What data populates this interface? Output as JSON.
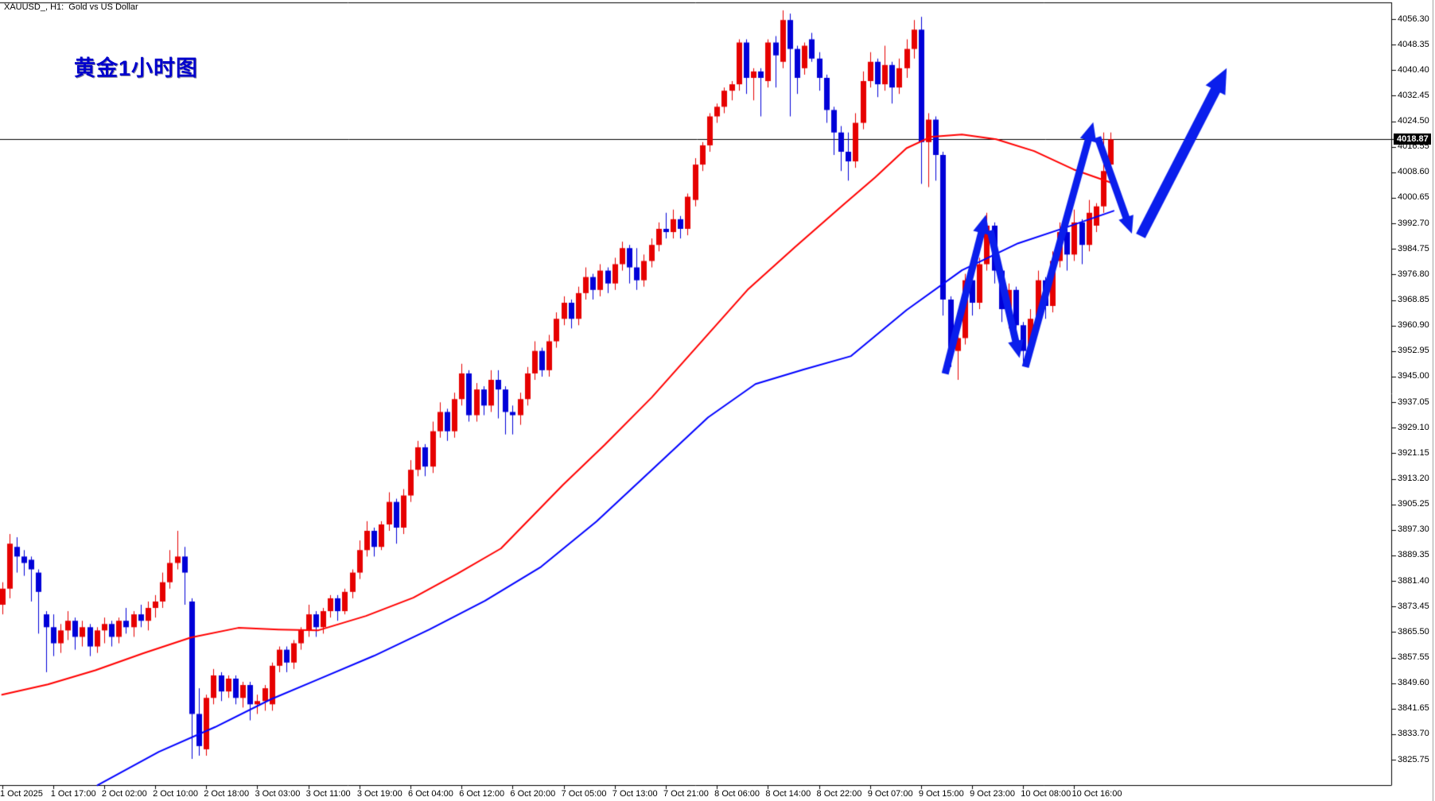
{
  "header": {
    "symbol_line": "XAUUSD_, H1:  Gold vs US Dollar",
    "title": "黄金1小时图"
  },
  "quote": {
    "bid": "4018.87"
  },
  "colors": {
    "background": "#ffffff",
    "border": "#000000",
    "candle_up": "#e60000",
    "candle_down": "#0000d8",
    "ma_fast": "#ff0000",
    "ma_slow": "#0000ff",
    "arrow": "#0a1eec",
    "bid_line": "#000000",
    "outer_frame": "#9a9a9a"
  },
  "chart_data": {
    "type": "candlestick",
    "title": "XAUUSD H1 Gold vs US Dollar",
    "grid": false,
    "legend_position": "none",
    "y_axis": {
      "min": 3825.75,
      "max": 4056.3,
      "step": 7.95,
      "ticks": [
        4056.3,
        4048.35,
        4040.4,
        4032.45,
        4024.5,
        4016.55,
        4008.6,
        4000.65,
        3992.7,
        3984.75,
        3976.8,
        3968.85,
        3960.9,
        3952.95,
        3945.0,
        3937.05,
        3929.1,
        3921.15,
        3913.2,
        3905.25,
        3897.3,
        3889.35,
        3881.4,
        3873.45,
        3865.5,
        3857.55,
        3849.6,
        3841.65,
        3833.7,
        3825.75
      ]
    },
    "x_axis": {
      "bars_per_tick": 7,
      "ticks": [
        "1 Oct 2025",
        "1 Oct 17:00",
        "2 Oct 02:00",
        "2 Oct 10:00",
        "2 Oct 18:00",
        "3 Oct 03:00",
        "3 Oct 11:00",
        "3 Oct 19:00",
        "6 Oct 04:00",
        "6 Oct 12:00",
        "6 Oct 20:00",
        "7 Oct 05:00",
        "7 Oct 13:00",
        "7 Oct 21:00",
        "8 Oct 06:00",
        "8 Oct 14:00",
        "8 Oct 22:00",
        "9 Oct 07:00",
        "9 Oct 15:00",
        "9 Oct 23:00",
        "10 Oct 08:00",
        "10 Oct 16:00"
      ]
    },
    "bid": 4018.87,
    "candles": [
      [
        3874,
        3881,
        3871,
        3879
      ],
      [
        3879,
        3896,
        3876,
        3893
      ],
      [
        3892,
        3895,
        3884,
        3889
      ],
      [
        3889,
        3891,
        3883,
        3887
      ],
      [
        3888,
        3889,
        3875,
        3885
      ],
      [
        3884,
        3885,
        3865,
        3878
      ],
      [
        3871,
        3872,
        3853,
        3867
      ],
      [
        3867,
        3871,
        3858,
        3862
      ],
      [
        3862,
        3868,
        3859,
        3866
      ],
      [
        3866,
        3872,
        3863,
        3869
      ],
      [
        3869,
        3870,
        3860,
        3864
      ],
      [
        3864,
        3869,
        3861,
        3867
      ],
      [
        3867,
        3868,
        3858,
        3861
      ],
      [
        3861,
        3867,
        3859,
        3866
      ],
      [
        3866,
        3870,
        3862,
        3868
      ],
      [
        3868,
        3869,
        3861,
        3864
      ],
      [
        3864,
        3870,
        3862,
        3869
      ],
      [
        3869,
        3873,
        3865,
        3867
      ],
      [
        3867,
        3872,
        3864,
        3871
      ],
      [
        3871,
        3874,
        3867,
        3869
      ],
      [
        3869,
        3875,
        3866,
        3873
      ],
      [
        3873,
        3877,
        3870,
        3875
      ],
      [
        3875,
        3884,
        3873,
        3881
      ],
      [
        3881,
        3891,
        3879,
        3887
      ],
      [
        3887,
        3897,
        3885,
        3889
      ],
      [
        3889,
        3892,
        3874,
        3884
      ],
      [
        3875,
        3876,
        3826,
        3840
      ],
      [
        3840,
        3848,
        3827,
        3830
      ],
      [
        3829,
        3846,
        3827,
        3845
      ],
      [
        3845,
        3854,
        3843,
        3852
      ],
      [
        3852,
        3853,
        3844,
        3847
      ],
      [
        3847,
        3852,
        3845,
        3851
      ],
      [
        3851,
        3852,
        3843,
        3845
      ],
      [
        3845,
        3850,
        3842,
        3849
      ],
      [
        3849,
        3850,
        3838,
        3843
      ],
      [
        3843,
        3846,
        3840,
        3844
      ],
      [
        3844,
        3849,
        3841,
        3848
      ],
      [
        3843,
        3856,
        3841,
        3855
      ],
      [
        3855,
        3861,
        3853,
        3860
      ],
      [
        3860,
        3861,
        3853,
        3856
      ],
      [
        3856,
        3863,
        3854,
        3862
      ],
      [
        3862,
        3867,
        3860,
        3866
      ],
      [
        3866,
        3874,
        3864,
        3871
      ],
      [
        3871,
        3872,
        3864,
        3867
      ],
      [
        3867,
        3873,
        3865,
        3872
      ],
      [
        3872,
        3877,
        3870,
        3876
      ],
      [
        3876,
        3877,
        3869,
        3872
      ],
      [
        3872,
        3879,
        3871,
        3878
      ],
      [
        3878,
        3885,
        3876,
        3884
      ],
      [
        3884,
        3894,
        3882,
        3891
      ],
      [
        3891,
        3900,
        3889,
        3897
      ],
      [
        3897,
        3898,
        3889,
        3892
      ],
      [
        3892,
        3900,
        3891,
        3899
      ],
      [
        3899,
        3909,
        3897,
        3906
      ],
      [
        3906,
        3907,
        3893,
        3898
      ],
      [
        3898,
        3910,
        3896,
        3908
      ],
      [
        3908,
        3919,
        3906,
        3916
      ],
      [
        3916,
        3925,
        3914,
        3923
      ],
      [
        3923,
        3924,
        3914,
        3917
      ],
      [
        3917,
        3931,
        3915,
        3928
      ],
      [
        3928,
        3937,
        3926,
        3934
      ],
      [
        3934,
        3935,
        3925,
        3928
      ],
      [
        3928,
        3940,
        3926,
        3938
      ],
      [
        3938,
        3949,
        3936,
        3946
      ],
      [
        3946,
        3947,
        3931,
        3933
      ],
      [
        3933,
        3943,
        3931,
        3941
      ],
      [
        3941,
        3942,
        3933,
        3936
      ],
      [
        3936,
        3947,
        3934,
        3944
      ],
      [
        3944,
        3947,
        3932,
        3941
      ],
      [
        3941,
        3942,
        3927,
        3934
      ],
      [
        3934,
        3936,
        3927,
        3933
      ],
      [
        3933,
        3940,
        3930,
        3938
      ],
      [
        3938,
        3948,
        3936,
        3946
      ],
      [
        3946,
        3956,
        3944,
        3953
      ],
      [
        3953,
        3954,
        3945,
        3947
      ],
      [
        3947,
        3958,
        3945,
        3956
      ],
      [
        3956,
        3965,
        3954,
        3963
      ],
      [
        3963,
        3970,
        3961,
        3968
      ],
      [
        3968,
        3969,
        3960,
        3963
      ],
      [
        3963,
        3973,
        3961,
        3971
      ],
      [
        3971,
        3979,
        3969,
        3976
      ],
      [
        3976,
        3977,
        3969,
        3972
      ],
      [
        3972,
        3980,
        3970,
        3978
      ],
      [
        3978,
        3979,
        3971,
        3974
      ],
      [
        3974,
        3982,
        3972,
        3980
      ],
      [
        3980,
        3987,
        3978,
        3985
      ],
      [
        3985,
        3986,
        3974,
        3979
      ],
      [
        3979,
        3985,
        3972,
        3975
      ],
      [
        3975,
        3983,
        3973,
        3981
      ],
      [
        3981,
        3988,
        3979,
        3986
      ],
      [
        3986,
        3993,
        3984,
        3991
      ],
      [
        3991,
        3996,
        3988,
        3990
      ],
      [
        3990,
        3997,
        3988,
        3994
      ],
      [
        3994,
        3995,
        3988,
        3991
      ],
      [
        3991,
        4002,
        3989,
        4001
      ],
      [
        4000,
        4013,
        3998,
        4011
      ],
      [
        4011,
        4018,
        4009,
        4017
      ],
      [
        4017,
        4027,
        4015,
        4026
      ],
      [
        4026,
        4030,
        4024,
        4029
      ],
      [
        4029,
        4035,
        4027,
        4034
      ],
      [
        4034,
        4037,
        4031,
        4036
      ],
      [
        4036,
        4050,
        4034,
        4049
      ],
      [
        4049,
        4050,
        4033,
        4038
      ],
      [
        4038,
        4041,
        4031,
        4040
      ],
      [
        4040,
        4041,
        4026,
        4038
      ],
      [
        4037,
        4050,
        4035,
        4049
      ],
      [
        4049,
        4051,
        4035,
        4045
      ],
      [
        4043,
        4059,
        4041,
        4056
      ],
      [
        4056,
        4058,
        4026,
        4047
      ],
      [
        4047,
        4048,
        4033,
        4038
      ],
      [
        4041,
        4049,
        4039,
        4048
      ],
      [
        4050,
        4052,
        4043,
        4044
      ],
      [
        4044,
        4046,
        4034,
        4038
      ],
      [
        4038,
        4039,
        4024,
        4028
      ],
      [
        4028,
        4029,
        4014,
        4021
      ],
      [
        4021,
        4023,
        4009,
        4015
      ],
      [
        4015,
        4021,
        4006,
        4012
      ],
      [
        4012,
        4027,
        4010,
        4024
      ],
      [
        4024,
        4040,
        4022,
        4037
      ],
      [
        4037,
        4046,
        4035,
        4043
      ],
      [
        4043,
        4044,
        4032,
        4036
      ],
      [
        4036,
        4048,
        4034,
        4042
      ],
      [
        4042,
        4043,
        4030,
        4035
      ],
      [
        4035,
        4044,
        4033,
        4041
      ],
      [
        4041,
        4050,
        4038,
        4047
      ],
      [
        4047,
        4056,
        4044,
        4053
      ],
      [
        4053,
        4057,
        4005,
        4018
      ],
      [
        4018,
        4027,
        4004,
        4025
      ],
      [
        4025,
        4026,
        4006,
        4014
      ],
      [
        4014,
        4015,
        3964,
        3969
      ],
      [
        3969,
        3970,
        3948,
        3953
      ],
      [
        3953,
        3959,
        3944,
        3957
      ],
      [
        3957,
        3977,
        3955,
        3975
      ],
      [
        3975,
        3976,
        3964,
        3968
      ],
      [
        3968,
        3982,
        3966,
        3980
      ],
      [
        3980,
        3996,
        3978,
        3992
      ],
      [
        3992,
        3993,
        3974,
        3978
      ],
      [
        3978,
        3979,
        3962,
        3966
      ],
      [
        3966,
        3974,
        3960,
        3972
      ],
      [
        3972,
        3973,
        3955,
        3961
      ],
      [
        3961,
        3962,
        3949,
        3953
      ],
      [
        3953,
        3966,
        3951,
        3963
      ],
      [
        3963,
        3978,
        3961,
        3975
      ],
      [
        3975,
        3976,
        3963,
        3967
      ],
      [
        3967,
        3984,
        3965,
        3981
      ],
      [
        3981,
        3993,
        3979,
        3990
      ],
      [
        3990,
        3991,
        3978,
        3983
      ],
      [
        3983,
        3997,
        3981,
        3993
      ],
      [
        3993,
        3994,
        3980,
        3986
      ],
      [
        3986,
        4000,
        3984,
        3996
      ],
      [
        3992,
        3999,
        3990,
        3998
      ],
      [
        3998,
        4021,
        3996,
        4009
      ],
      [
        4011,
        4021,
        4008,
        4018.87
      ]
    ],
    "ma_fast_points": [
      [
        0,
        3846
      ],
      [
        6.3,
        3849.2
      ],
      [
        12.8,
        3853.6
      ],
      [
        19.4,
        3858.9
      ],
      [
        25.9,
        3863.8
      ],
      [
        32.4,
        3866.8
      ],
      [
        37.9,
        3866.3
      ],
      [
        43.3,
        3866
      ],
      [
        49.9,
        3870.5
      ],
      [
        56.4,
        3876.2
      ],
      [
        62.4,
        3883.6
      ],
      [
        68.4,
        3891.5
      ],
      [
        76.9,
        3911.3
      ],
      [
        82.6,
        3923.7
      ],
      [
        89.1,
        3938.6
      ],
      [
        95.7,
        3955.4
      ],
      [
        102.2,
        3972
      ],
      [
        108.8,
        3985.5
      ],
      [
        115.3,
        3998.4
      ],
      [
        119.7,
        4007
      ],
      [
        124,
        4016.1
      ],
      [
        127.3,
        4019.6
      ],
      [
        131.6,
        4020.4
      ],
      [
        136.3,
        4018.9
      ],
      [
        141.5,
        4015.2
      ],
      [
        146.9,
        4009.5
      ],
      [
        152.4,
        4005.1
      ]
    ],
    "ma_slow_points": [
      [
        13.1,
        3817.8
      ],
      [
        21.5,
        3828.2
      ],
      [
        29.2,
        3835.9
      ],
      [
        36.8,
        3844.5
      ],
      [
        43.3,
        3850.7
      ],
      [
        51,
        3858.1
      ],
      [
        58.6,
        3866.3
      ],
      [
        66.2,
        3875.2
      ],
      [
        73.9,
        3885.8
      ],
      [
        81.5,
        3899.9
      ],
      [
        89.1,
        3916
      ],
      [
        96.8,
        3932.3
      ],
      [
        103.3,
        3942.7
      ],
      [
        109.9,
        3947.2
      ],
      [
        116.4,
        3951.4
      ],
      [
        124,
        3965.7
      ],
      [
        131.6,
        3978.1
      ],
      [
        139.3,
        3986.5
      ],
      [
        145.8,
        3991.4
      ],
      [
        152.4,
        3996.6
      ]
    ],
    "arrows": [
      {
        "from": [
          129.3,
          3945.9
        ],
        "to": [
          134.9,
          3995.4
        ],
        "w": 9,
        "head": 26
      },
      {
        "from": [
          135.5,
          3990.5
        ],
        "to": [
          139.5,
          3950.8
        ],
        "w": 9,
        "head": 24
      },
      {
        "from": [
          140.3,
          3948.0
        ],
        "to": [
          149.6,
          4024.2
        ],
        "w": 9,
        "head": 26
      },
      {
        "from": [
          150.2,
          4019.5
        ],
        "to": [
          154.9,
          3989.5
        ],
        "w": 9,
        "head": 24
      },
      {
        "from": [
          156.1,
          3988.8
        ],
        "to": [
          167.9,
          4041.0
        ],
        "w": 13,
        "head": 34
      }
    ]
  }
}
